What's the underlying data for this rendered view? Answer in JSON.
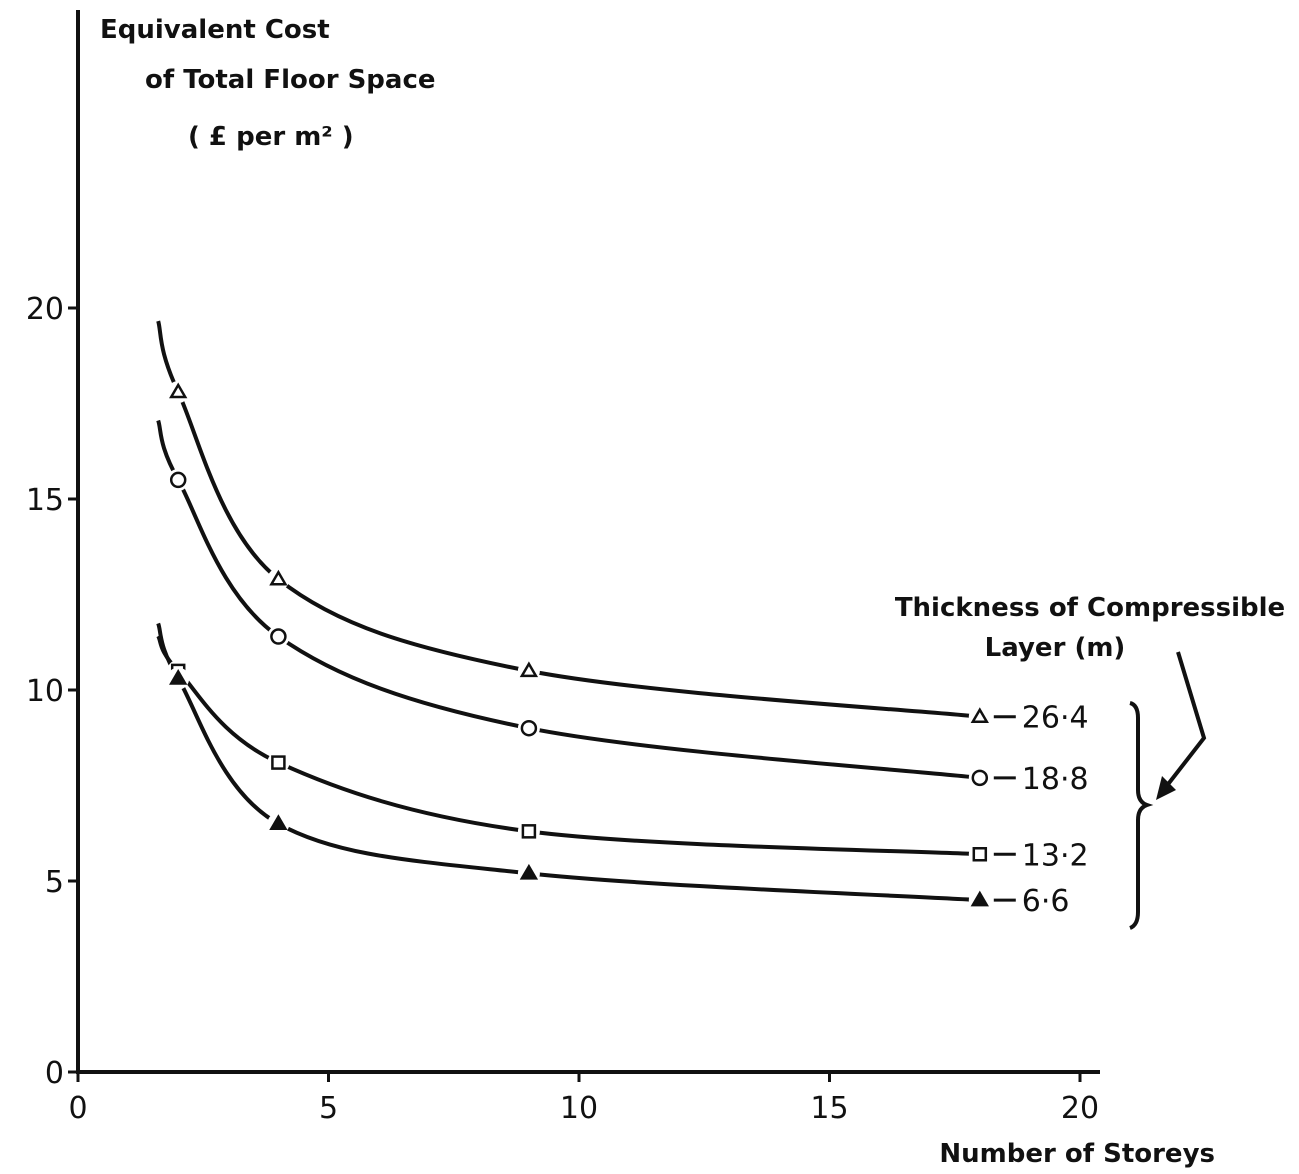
{
  "chart_data": {
    "type": "line",
    "title": "",
    "ylabel_lines": [
      "Equivalent Cost",
      "of Total Floor Space",
      "( £ per  m² )"
    ],
    "xlabel": "Number of Storeys",
    "xlim": [
      0,
      20
    ],
    "ylim": [
      0,
      20
    ],
    "xticks": [
      0,
      5,
      10,
      15,
      20
    ],
    "yticks": [
      0,
      5,
      10,
      15,
      20
    ],
    "x": [
      2,
      4,
      9,
      18
    ],
    "grid": false,
    "legend_title_lines": [
      "Thickness of Compressible",
      "Layer  (m)"
    ],
    "series": [
      {
        "name": "26·4",
        "marker": "triangle-open",
        "values": [
          17.8,
          12.9,
          10.5,
          9.3
        ]
      },
      {
        "name": "18·8",
        "marker": "circle-open",
        "values": [
          15.5,
          11.4,
          9.0,
          7.7
        ]
      },
      {
        "name": "13·2",
        "marker": "square-open",
        "values": [
          10.5,
          8.1,
          6.3,
          5.7
        ]
      },
      {
        "name": "6·6",
        "marker": "triangle-filled",
        "values": [
          10.3,
          6.5,
          5.2,
          4.5
        ]
      }
    ]
  },
  "colors": {
    "ink": "#111111",
    "background": "#ffffff"
  }
}
